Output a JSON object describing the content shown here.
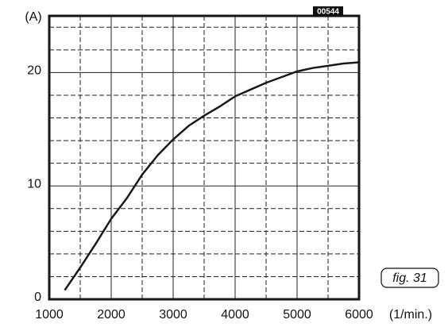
{
  "chart_data": {
    "type": "line",
    "x_label": "(1/min.)",
    "y_label": "(A)",
    "annotations": [
      "00544",
      "fig.  31"
    ],
    "x": [
      1250,
      1500,
      1750,
      2000,
      2250,
      2500,
      2750,
      3000,
      3250,
      3500,
      3750,
      4000,
      4250,
      4500,
      4750,
      5000,
      5250,
      5500,
      5750,
      6000
    ],
    "values": [
      0.8,
      2.8,
      4.9,
      7.1,
      8.9,
      11.0,
      12.7,
      14.1,
      15.3,
      16.2,
      17.0,
      17.9,
      18.5,
      19.1,
      19.6,
      20.1,
      20.4,
      20.6,
      20.8,
      20.9
    ],
    "color": "#1a1a1a",
    "xlim": [
      1000,
      6000
    ],
    "ylim": [
      0,
      25
    ],
    "xticks": [
      1000,
      2000,
      3000,
      4000,
      5000,
      6000
    ],
    "yticks": [
      0,
      10,
      20
    ],
    "minor_xticks": [
      1500,
      2500,
      3500,
      4500,
      5500
    ],
    "minor_yticks": [
      2,
      4,
      6,
      8,
      12,
      14,
      16,
      18,
      22,
      24
    ],
    "grid": true
  }
}
